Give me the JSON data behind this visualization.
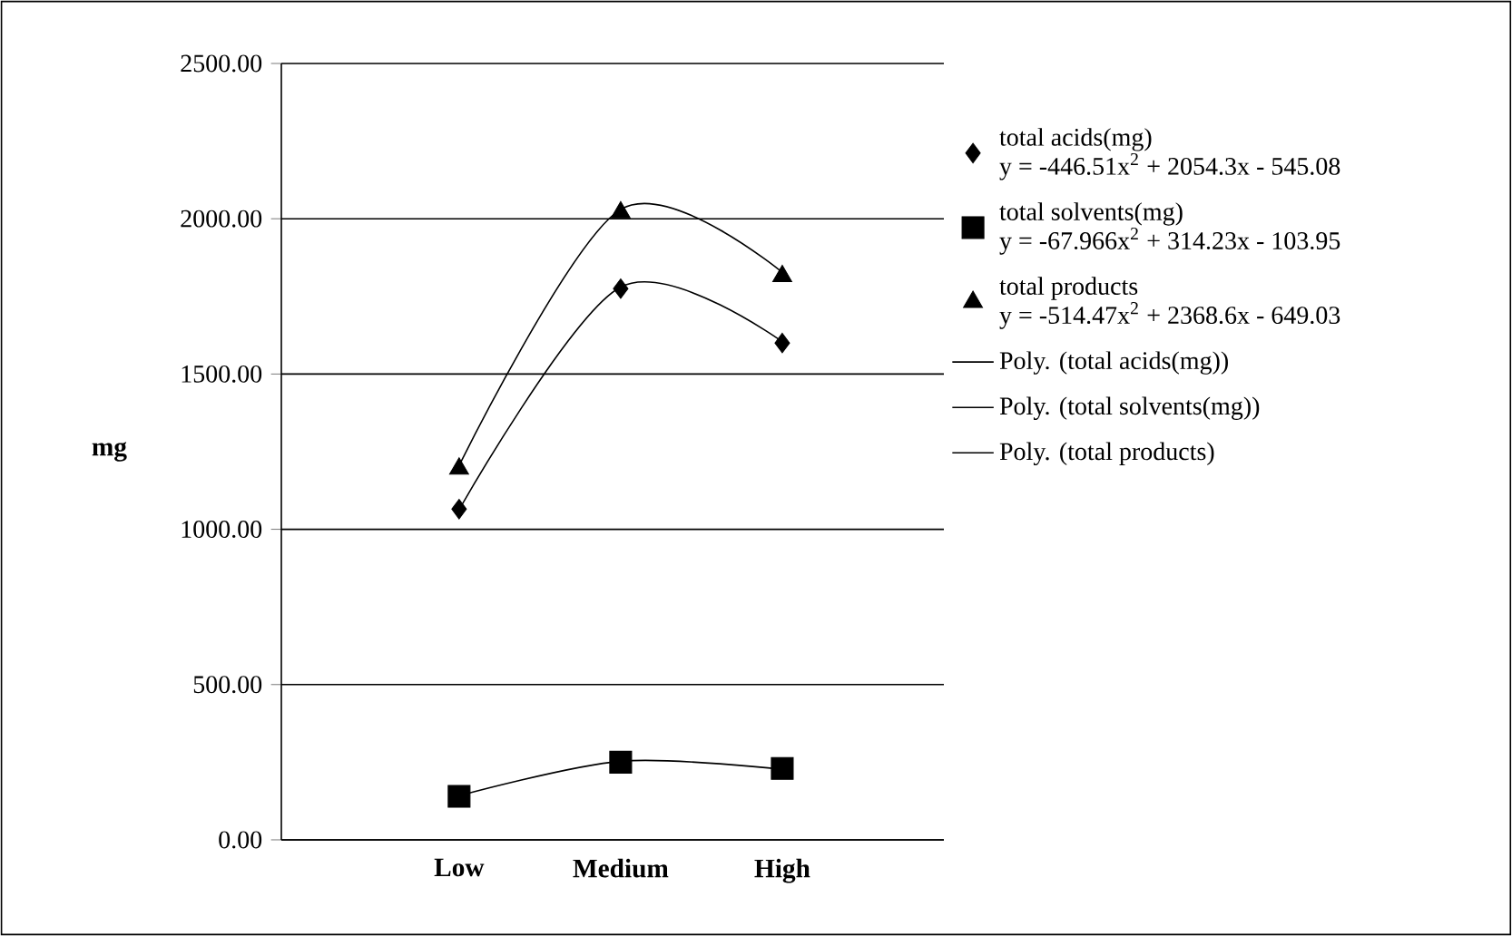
{
  "chart_data": {
    "type": "scatter",
    "ylabel": "mg",
    "categories": [
      "Low",
      "Medium",
      "High"
    ],
    "ylim": [
      0,
      2500
    ],
    "yticks": [
      {
        "value": 0,
        "label": "0.00"
      },
      {
        "value": 500,
        "label": "500.00"
      },
      {
        "value": 1000,
        "label": "1000.00"
      },
      {
        "value": 1500,
        "label": "1500.00"
      },
      {
        "value": 2000,
        "label": "2000.00"
      },
      {
        "value": 2500,
        "label": "2500.00"
      }
    ],
    "grid": "y",
    "legend": "right",
    "series": [
      {
        "name": "total acids(mg)",
        "color": "#000000",
        "marker": "diamond",
        "values": [
          1065,
          1775,
          1600
        ]
      },
      {
        "name": "total solvents(mg)",
        "color": "#000000",
        "marker": "square",
        "values": [
          140,
          250,
          230
        ]
      },
      {
        "name": "total products",
        "color": "#000000",
        "marker": "triangle",
        "values": [
          1195,
          2020,
          1815
        ]
      },
      {
        "name": "Poly. (total acids(mg))",
        "type": "line",
        "color": "#000000",
        "marker": "none",
        "values": [
          1063,
          1780,
          1604
        ]
      },
      {
        "name": "Poly. (total solvents(mg))",
        "type": "line",
        "color": "#000000",
        "marker": "none",
        "values": [
          142,
          253,
          227
        ]
      },
      {
        "name": "Poly. (total products)",
        "type": "line",
        "color": "#000000",
        "marker": "none",
        "values": [
          1205,
          2030,
          1827
        ]
      }
    ],
    "annotations": [
      "y = -446.51x$^{2}$ + 2054.3x - 545.08",
      "y = -67.966x$^{2}$ + 314.23x - 103.95",
      "y = -514.47x$^{2}$ + 2368.6x - 649.03"
    ]
  }
}
